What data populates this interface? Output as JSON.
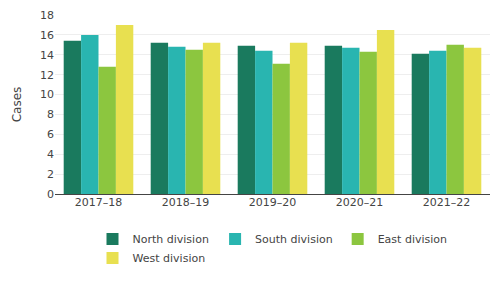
{
  "chart_data": {
    "type": "bar",
    "ylabel": "Cases",
    "categories": [
      "2017–18",
      "2018–19",
      "2019–20",
      "2020–21",
      "2021–22"
    ],
    "series": [
      {
        "name": "North division",
        "color": "#1a7a5e",
        "values": [
          15.4,
          15.2,
          14.9,
          14.9,
          14.1
        ]
      },
      {
        "name": "South division",
        "color": "#29b5b0",
        "values": [
          16.0,
          14.8,
          14.4,
          14.7,
          14.4
        ]
      },
      {
        "name": "East division",
        "color": "#8cc63f",
        "values": [
          12.8,
          14.5,
          13.1,
          14.3,
          15.0
        ]
      },
      {
        "name": "West division",
        "color": "#e8e050",
        "values": [
          17.0,
          15.2,
          15.2,
          16.5,
          14.7
        ]
      }
    ],
    "ylim": [
      0,
      18
    ],
    "yticks": [
      0,
      2,
      4,
      6,
      8,
      10,
      12,
      14,
      16,
      18
    ],
    "grid": true,
    "legend": "bottom"
  }
}
